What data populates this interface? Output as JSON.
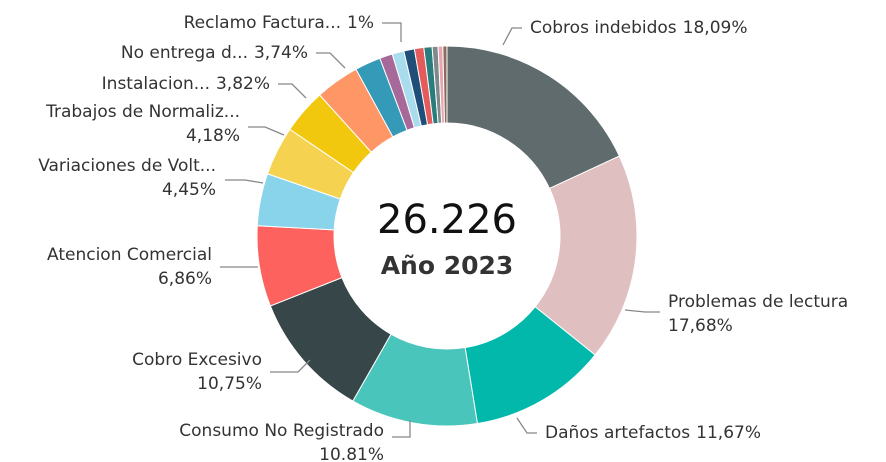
{
  "chart_data": {
    "type": "donut",
    "center_value": "26.226",
    "center_label": "Año 2023",
    "categories": [
      "Cobros indebidos",
      "Problemas de lectura",
      "Daños artefactos",
      "Consumo No Registrado",
      "Cobro Excesivo",
      "Atencion Comercial",
      "Variaciones de Volt...",
      "Trabajos de Normaliz...",
      "Instalacion...",
      "No entrega d...",
      null,
      null,
      "Reclamo Factura...",
      null,
      null,
      null,
      null,
      null,
      null
    ],
    "values": [
      18.09,
      17.68,
      11.67,
      10.81,
      10.75,
      6.86,
      4.45,
      4.18,
      3.82,
      3.74,
      2.2,
      1.1,
      1,
      0.9,
      0.8,
      0.7,
      0.5,
      0.4,
      0.35
    ],
    "value_labels": [
      "18,09%",
      "17,68%",
      "11,67%",
      "10.81%",
      "10,75%",
      "6,86%",
      "4,45%",
      "4,18%",
      "3,82%",
      "3,74%",
      null,
      null,
      "1%",
      null,
      null,
      null,
      null,
      null,
      null
    ],
    "colors": [
      "#5f6b6d",
      "#dfbfbf",
      "#01b8aa",
      "#4ac5bb",
      "#374649",
      "#fd625e",
      "#8ad4eb",
      "#f5d350",
      "#f2c80f",
      "#fe9666",
      "#3599b8",
      "#a66999",
      "#a9dcec",
      "#1f4e79",
      "#e35b5b",
      "#2a7d7d",
      "#7f898a",
      "#e8a5b0",
      "#8c6d5c"
    ]
  }
}
